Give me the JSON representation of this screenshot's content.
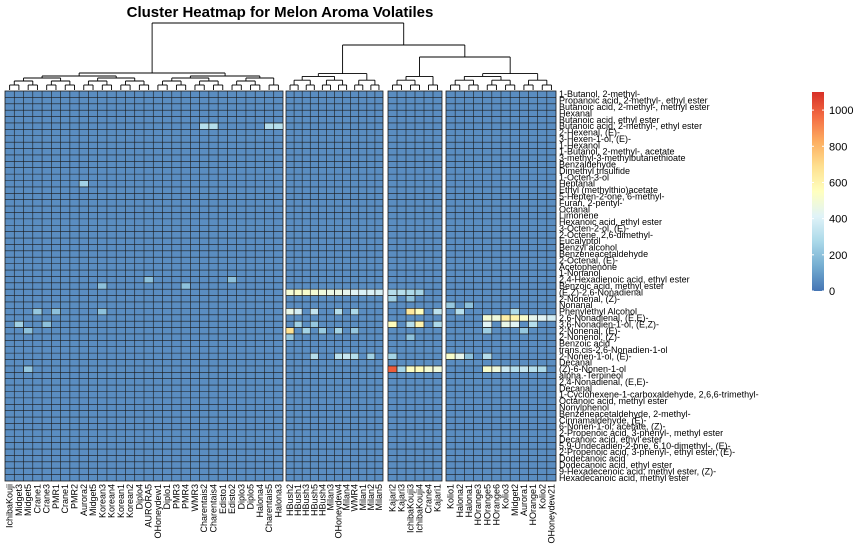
{
  "chart_data": {
    "type": "heatmap",
    "title": "Cluster Heatmap for Melon Aroma Volatiles",
    "column_groups": [
      [
        "IchibaKouji",
        "Midget3",
        "Midget5",
        "Crane1",
        "Crane3",
        "PMR1",
        "Crane1",
        "PMR2",
        "Aurora2",
        "Midget5",
        "Korean3",
        "Korean4",
        "Korean1",
        "Korean2",
        "Diplo4",
        "AURORA5",
        "OHoneydew1",
        "Diplo1",
        "PMR3",
        "PMR4",
        "WMR3",
        "Charentais2",
        "Charentais4",
        "Edisto1",
        "Edisto2",
        "Diplo3",
        "Diplo5",
        "Halona4",
        "Charentais5",
        "Halona3"
      ],
      [
        "HBush2",
        "HBush1",
        "HBush3",
        "HBush5",
        "HBush4",
        "Milan3",
        "OHoneydew4",
        "Milan4",
        "WMR4",
        "Milan1",
        "Milan2",
        "Milan5"
      ],
      [
        "Kajari2",
        "Kajari3",
        "IchibaKouji3",
        "IchibaKouji4",
        "Crane4",
        "Kajari1"
      ],
      [
        "Kolio1",
        "Halona2",
        "Halona1",
        "HOrange3",
        "HOrange5",
        "HOrange6",
        "Kolio3",
        "Midget2",
        "Aurora1",
        "HOrange1",
        "Kolio2",
        "OHoneydew21"
      ]
    ],
    "row_labels": [
      "1-Butanol, 2-methyl-",
      "Propanoic acid, 2-methyl-, ethyl ester",
      "Butanoic acid, 2-methyl-, methyl ester",
      "Hexanal",
      "Butanoic acid, ethyl ester",
      "Butanoic acid, 2-methyl-, ethyl ester",
      "2-Hexenal, (E)-",
      "3-Hexen-1-ol, (E)-",
      "1-Hexanol",
      "1-Butanol, 2-methyl-, acetate",
      "3-methyl-3-methylbutanethioate",
      "Benzaldehyde",
      "Dimethyl trisulfide",
      "1-Octen-3-ol",
      "Heptanal",
      "Ethyl (methylthio)acetate",
      "5-Hepten-2-one, 6-methyl-",
      "Furan, 2-pentyl-",
      "Octanal",
      "Limonene",
      "Hexanoic acid, ethyl ester",
      "3-Octen-2-ol, (E)-",
      "2-Octene, 2,6-dimethyl-",
      "Eucalyptol",
      "Benzyl alcohol",
      "Benzeneacetaldehyde",
      "2-Octenal, (E)-",
      "Acetophenone",
      "1-Nonanol",
      "2,4-Hexadienoic acid, ethyl ester",
      "Benzoic acid, methyl ester",
      "(E,Z)-2,6-Nonadienal",
      "2-Nonenal, (Z)-",
      "Nonanal",
      "Phenylethyl Alcohol",
      "2,6-Nonadienal, (E,E)-",
      "3,6-Nonadien-1-ol, (E,Z)-",
      "2-Nonenal, (E)-",
      "2-Nonenol, (Z)-",
      "Benzoic acid",
      "trans,cis-2,6-Nonadien-1-ol",
      "2-Nonen-1-ol, (E)-",
      "Decanal",
      "(Z)-6-Nonen-1-ol",
      "alpha.-Terpineol",
      "2,4-Nonadienal, (E,E)-",
      "Decanal",
      "1-Cyclohexene-1-carboxaldehyde, 2,6,6-trimethyl-",
      "Octanoic acid, methyl ester",
      "Nonylphenol",
      "Benzeneacetaldehyde, 2-methyl-",
      "Cinnamaldehyde, (E)-",
      "6-Nonen-1-ol, acetate, (Z)-",
      "2-Propenoic acid, 3-phenyl-, methyl ester",
      "Decanoic acid, ethyl ester",
      "5,9-Undecadien-2-one, 6,10-dimethyl-, (E)-",
      "2-Propenoic acid, 3-phenyl-, ethyl ester, (E)-",
      "Dodecanoic acid",
      "Dodecanoic acid, ethyl ester",
      "9-Hexadecenoic acid, methyl ester, (Z)-",
      "Hexadecanoic acid, methyl ester"
    ],
    "hot_cells": [
      {
        "r": 5,
        "c": 21,
        "v": 300
      },
      {
        "r": 5,
        "c": 22,
        "v": 300
      },
      {
        "r": 5,
        "c": 28,
        "v": 300
      },
      {
        "r": 5,
        "c": 29,
        "v": 300
      },
      {
        "r": 14,
        "c": 8,
        "v": 250
      },
      {
        "r": 29,
        "c": 15,
        "v": 200
      },
      {
        "r": 29,
        "c": 24,
        "v": 200
      },
      {
        "r": 30,
        "c": 10,
        "v": 200
      },
      {
        "r": 30,
        "c": 19,
        "v": 200
      },
      {
        "r": 31,
        "c": 30,
        "v": 500
      },
      {
        "r": 31,
        "c": 31,
        "v": 520
      },
      {
        "r": 31,
        "c": 32,
        "v": 520
      },
      {
        "r": 31,
        "c": 33,
        "v": 500
      },
      {
        "r": 31,
        "c": 34,
        "v": 480
      },
      {
        "r": 31,
        "c": 35,
        "v": 460
      },
      {
        "r": 31,
        "c": 36,
        "v": 460
      },
      {
        "r": 31,
        "c": 37,
        "v": 440
      },
      {
        "r": 31,
        "c": 38,
        "v": 420
      },
      {
        "r": 31,
        "c": 39,
        "v": 400
      },
      {
        "r": 31,
        "c": 40,
        "v": 400
      },
      {
        "r": 31,
        "c": 41,
        "v": 380
      },
      {
        "r": 31,
        "c": 42,
        "v": 300
      },
      {
        "r": 31,
        "c": 43,
        "v": 300
      },
      {
        "r": 31,
        "c": 44,
        "v": 280
      },
      {
        "r": 31,
        "c": 45,
        "v": 260
      },
      {
        "r": 32,
        "c": 42,
        "v": 250
      },
      {
        "r": 32,
        "c": 44,
        "v": 200
      },
      {
        "r": 33,
        "c": 48,
        "v": 220
      },
      {
        "r": 33,
        "c": 50,
        "v": 200
      },
      {
        "r": 34,
        "c": 3,
        "v": 220
      },
      {
        "r": 34,
        "c": 5,
        "v": 200
      },
      {
        "r": 34,
        "c": 10,
        "v": 200
      },
      {
        "r": 34,
        "c": 30,
        "v": 450
      },
      {
        "r": 34,
        "c": 31,
        "v": 380
      },
      {
        "r": 34,
        "c": 33,
        "v": 340
      },
      {
        "r": 34,
        "c": 36,
        "v": 300
      },
      {
        "r": 34,
        "c": 38,
        "v": 280
      },
      {
        "r": 34,
        "c": 44,
        "v": 650
      },
      {
        "r": 34,
        "c": 45,
        "v": 550
      },
      {
        "r": 34,
        "c": 47,
        "v": 320
      },
      {
        "r": 34,
        "c": 49,
        "v": 300
      },
      {
        "r": 34,
        "c": 55,
        "v": 280
      },
      {
        "r": 35,
        "c": 52,
        "v": 500
      },
      {
        "r": 35,
        "c": 53,
        "v": 480
      },
      {
        "r": 35,
        "c": 54,
        "v": 620
      },
      {
        "r": 35,
        "c": 55,
        "v": 600
      },
      {
        "r": 35,
        "c": 56,
        "v": 520
      },
      {
        "r": 35,
        "c": 57,
        "v": 440
      },
      {
        "r": 35,
        "c": 58,
        "v": 420
      },
      {
        "r": 35,
        "c": 59,
        "v": 380
      },
      {
        "r": 35,
        "c": 60,
        "v": 380
      },
      {
        "r": 35,
        "c": 61,
        "v": 360
      },
      {
        "r": 35,
        "c": 62,
        "v": 340
      },
      {
        "r": 35,
        "c": 63,
        "v": 320
      },
      {
        "r": 36,
        "c": 1,
        "v": 250
      },
      {
        "r": 36,
        "c": 4,
        "v": 200
      },
      {
        "r": 36,
        "c": 31,
        "v": 250
      },
      {
        "r": 36,
        "c": 33,
        "v": 220
      },
      {
        "r": 36,
        "c": 42,
        "v": 560
      },
      {
        "r": 36,
        "c": 44,
        "v": 300
      },
      {
        "r": 36,
        "c": 45,
        "v": 600
      },
      {
        "r": 36,
        "c": 47,
        "v": 280
      },
      {
        "r": 36,
        "c": 52,
        "v": 420
      },
      {
        "r": 36,
        "c": 54,
        "v": 450
      },
      {
        "r": 36,
        "c": 55,
        "v": 420
      },
      {
        "r": 36,
        "c": 57,
        "v": 300
      },
      {
        "r": 37,
        "c": 2,
        "v": 200
      },
      {
        "r": 37,
        "c": 30,
        "v": 680
      },
      {
        "r": 37,
        "c": 32,
        "v": 260
      },
      {
        "r": 37,
        "c": 34,
        "v": 230
      },
      {
        "r": 37,
        "c": 36,
        "v": 260
      },
      {
        "r": 37,
        "c": 38,
        "v": 220
      },
      {
        "r": 37,
        "c": 52,
        "v": 240
      },
      {
        "r": 37,
        "c": 56,
        "v": 220
      },
      {
        "r": 38,
        "c": 30,
        "v": 220
      },
      {
        "r": 38,
        "c": 44,
        "v": 200
      },
      {
        "r": 41,
        "c": 33,
        "v": 300
      },
      {
        "r": 41,
        "c": 36,
        "v": 320
      },
      {
        "r": 41,
        "c": 37,
        "v": 350
      },
      {
        "r": 41,
        "c": 38,
        "v": 300
      },
      {
        "r": 41,
        "c": 40,
        "v": 250
      },
      {
        "r": 41,
        "c": 42,
        "v": 260
      },
      {
        "r": 41,
        "c": 48,
        "v": 520
      },
      {
        "r": 41,
        "c": 49,
        "v": 440
      },
      {
        "r": 41,
        "c": 50,
        "v": 200
      },
      {
        "r": 41,
        "c": 52,
        "v": 300
      },
      {
        "r": 43,
        "c": 2,
        "v": 220
      },
      {
        "r": 43,
        "c": 42,
        "v": 1000
      },
      {
        "r": 43,
        "c": 43,
        "v": 260
      },
      {
        "r": 43,
        "c": 44,
        "v": 540
      },
      {
        "r": 43,
        "c": 45,
        "v": 560
      },
      {
        "r": 43,
        "c": 46,
        "v": 500
      },
      {
        "r": 43,
        "c": 47,
        "v": 480
      },
      {
        "r": 43,
        "c": 52,
        "v": 520
      },
      {
        "r": 43,
        "c": 53,
        "v": 480
      },
      {
        "r": 43,
        "c": 54,
        "v": 360
      },
      {
        "r": 43,
        "c": 55,
        "v": 300
      },
      {
        "r": 43,
        "c": 56,
        "v": 340
      },
      {
        "r": 43,
        "c": 57,
        "v": 300
      },
      {
        "r": 43,
        "c": 58,
        "v": 280
      },
      {
        "r": 43,
        "c": 60,
        "v": 300
      },
      {
        "r": 43,
        "c": 61,
        "v": 280
      }
    ],
    "color_scale": {
      "colors": [
        "#4575b4",
        "#74add1",
        "#abd9e9",
        "#e0f3f8",
        "#ffffbf",
        "#fee090",
        "#fdae61",
        "#f46d43",
        "#d73027"
      ],
      "min": 0,
      "max": 1100
    },
    "legend": {
      "ticks": [
        0,
        200,
        400,
        600,
        800,
        1000
      ]
    }
  }
}
